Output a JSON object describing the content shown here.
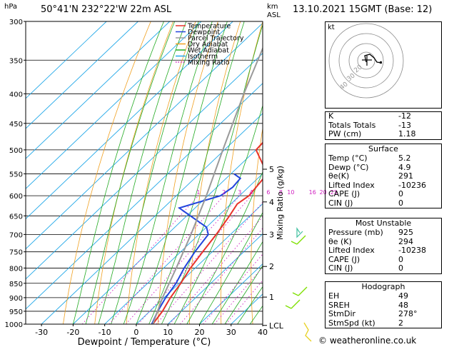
{
  "header": {
    "pressure_unit": "hPa",
    "location": "50°41'N  232°22'W  22m  ASL",
    "height_unit_km": "km",
    "height_unit_asl": "ASL",
    "datetime": "13.10.2021  15GMT  (Base: 12)"
  },
  "chart_data": {
    "type": "line",
    "title": "",
    "xlabel": "Dewpoint / Temperature (°C)",
    "ylabel": "hPa",
    "ylabel_right": "Mixing Ratio (g/kg)",
    "xlim": [
      -35,
      40
    ],
    "ylim": [
      1000,
      300
    ],
    "pressure_ticks": [
      300,
      350,
      400,
      450,
      500,
      550,
      600,
      650,
      700,
      750,
      800,
      850,
      900,
      950,
      1000
    ],
    "temperature_ticks": [
      -30,
      -20,
      -10,
      0,
      10,
      20,
      30,
      40
    ],
    "km_ticks": [
      {
        "label": "5",
        "p": 540
      },
      {
        "label": "4",
        "p": 615
      },
      {
        "label": "3",
        "p": 700
      },
      {
        "label": "2",
        "p": 795
      },
      {
        "label": "1",
        "p": 898
      },
      {
        "label": "LCL",
        "p": 1005
      }
    ],
    "mixing_ratio_labels": [
      "1",
      "2",
      "3",
      "4",
      "6",
      "8",
      "10",
      "16",
      "20",
      "25"
    ],
    "legend": [
      "Temperature",
      "Dewpoint",
      "Parcel Trajectory",
      "Dry Adiabat",
      "Wet Adiabat",
      "Isotherm",
      "Mixing Ratio"
    ],
    "legend_position": "top-left",
    "colors": {
      "temperature": "#e8322a",
      "dewpoint": "#2244dd",
      "parcel": "#9a9a9a",
      "dry_adiabat": "#f0a020",
      "wet_adiabat": "#22aa22",
      "isotherm": "#22a8e8",
      "mixing_ratio": "#d020c0"
    },
    "series": [
      {
        "name": "Temperature",
        "points": [
          {
            "p": 1000,
            "t": 5.2
          },
          {
            "p": 950,
            "t": 4.0
          },
          {
            "p": 900,
            "t": 2.0
          },
          {
            "p": 850,
            "t": 0.5
          },
          {
            "p": 800,
            "t": -1.5
          },
          {
            "p": 750,
            "t": -3.0
          },
          {
            "p": 700,
            "t": -4.5
          },
          {
            "p": 650,
            "t": -6.5
          },
          {
            "p": 620,
            "t": -8.0
          },
          {
            "p": 600,
            "t": -7.0
          },
          {
            "p": 550,
            "t": -8.5
          },
          {
            "p": 500,
            "t": -20.0
          },
          {
            "p": 450,
            "t": -21.0
          },
          {
            "p": 400,
            "t": -25.0
          },
          {
            "p": 360,
            "t": -28.0
          }
        ]
      },
      {
        "name": "Dewpoint",
        "points": [
          {
            "p": 1000,
            "t": 4.9
          },
          {
            "p": 950,
            "t": 2.5
          },
          {
            "p": 900,
            "t": 0.5
          },
          {
            "p": 850,
            "t": -1.0
          },
          {
            "p": 800,
            "t": -3.5
          },
          {
            "p": 750,
            "t": -5.5
          },
          {
            "p": 700,
            "t": -7.0
          },
          {
            "p": 680,
            "t": -10.0
          },
          {
            "p": 630,
            "t": -25.0
          },
          {
            "p": 600,
            "t": -16.0
          },
          {
            "p": 580,
            "t": -15.0
          },
          {
            "p": 560,
            "t": -15.5
          },
          {
            "p": 550,
            "t": -19.0
          }
        ]
      },
      {
        "name": "Parcel Trajectory",
        "points": [
          {
            "p": 1000,
            "t": 5.2
          },
          {
            "p": 900,
            "t": -0.5
          },
          {
            "p": 800,
            "t": -6.0
          },
          {
            "p": 700,
            "t": -12.5
          },
          {
            "p": 600,
            "t": -20.5
          },
          {
            "p": 500,
            "t": -30.5
          },
          {
            "p": 400,
            "t": -42.5
          },
          {
            "p": 300,
            "t": -57.0
          }
        ]
      }
    ]
  },
  "hodograph": {
    "unit_label": "kt",
    "ring_labels": [
      "20",
      "30",
      "40"
    ]
  },
  "index_table": {
    "rows": [
      {
        "label": "K",
        "value": "-12"
      },
      {
        "label": "Totals Totals",
        "value": "-13"
      },
      {
        "label": "PW (cm)",
        "value": "1.18"
      }
    ]
  },
  "surface": {
    "title": "Surface",
    "rows": [
      {
        "label": "Temp (°C)",
        "value": "5.2"
      },
      {
        "label": "Dewp (°C)",
        "value": "4.9"
      },
      {
        "label": "θe(K)",
        "value": "291"
      },
      {
        "label": "Lifted Index",
        "value": "-10236"
      },
      {
        "label": "CAPE (J)",
        "value": "0"
      },
      {
        "label": "CIN (J)",
        "value": "0"
      }
    ]
  },
  "most_unstable": {
    "title": "Most Unstable",
    "rows": [
      {
        "label": "Pressure (mb)",
        "value": "925"
      },
      {
        "label": "θe (K)",
        "value": "294"
      },
      {
        "label": "Lifted Index",
        "value": "-10238"
      },
      {
        "label": "CAPE (J)",
        "value": "0"
      },
      {
        "label": "CIN (J)",
        "value": "0"
      }
    ]
  },
  "hodograph_table": {
    "title": "Hodograph",
    "rows": [
      {
        "label": "EH",
        "value": "49"
      },
      {
        "label": "SREH",
        "value": "48"
      },
      {
        "label": "StmDir",
        "value": "278°"
      },
      {
        "label": "StmSpd (kt)",
        "value": "2"
      }
    ]
  },
  "credit": "© weatheronline.co.uk"
}
